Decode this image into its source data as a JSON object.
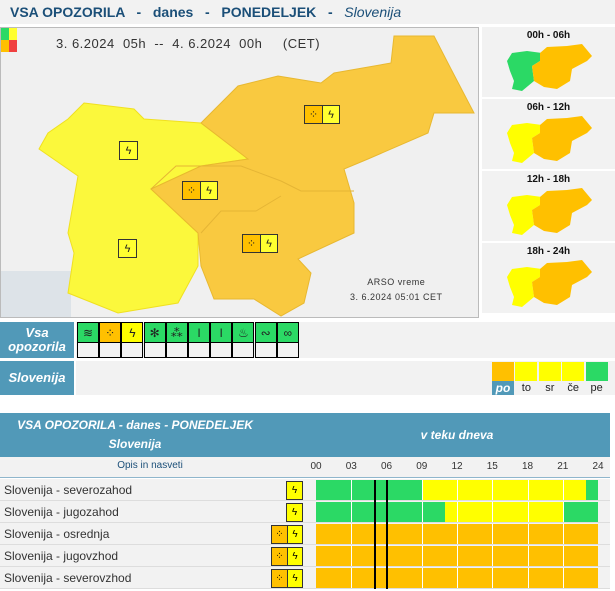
{
  "header": {
    "title": "VSA OPOZORILA",
    "sep": "-",
    "day_label": "danes",
    "weekday": "PONEDELJEK",
    "region": "Slovenija"
  },
  "map": {
    "period": "3. 6.2024  05h  --  4. 6.2024  00h     (CET)",
    "credit": "ARSO vreme",
    "issued": "3. 6.2024  05:01 CET",
    "legend_colors": [
      "#2bd965",
      "#ffff30",
      "#ffc000",
      "#f04040"
    ],
    "regions": [
      {
        "name": "severozahod",
        "level": "yellow",
        "icons": [
          "thunderstorm"
        ]
      },
      {
        "name": "jugozahod",
        "level": "yellow",
        "icons": [
          "thunderstorm"
        ]
      },
      {
        "name": "osrednja",
        "level": "orange",
        "icons": [
          "rain",
          "thunderstorm"
        ]
      },
      {
        "name": "jugovzhod",
        "level": "orange",
        "icons": [
          "rain",
          "thunderstorm"
        ]
      },
      {
        "name": "severovzhod",
        "level": "orange",
        "icons": [
          "rain",
          "thunderstorm"
        ]
      }
    ]
  },
  "period_maps": [
    {
      "label": "00h - 06h"
    },
    {
      "label": "06h - 12h"
    },
    {
      "label": "12h - 18h"
    },
    {
      "label": "18h - 24h"
    }
  ],
  "all_warnings": {
    "label": "Vsa opozorila",
    "types": [
      {
        "type": "wind",
        "level": "green"
      },
      {
        "type": "rain",
        "level": "orange"
      },
      {
        "type": "thunderstorm",
        "level": "yellow"
      },
      {
        "type": "snow",
        "level": "green"
      },
      {
        "type": "snow-ice",
        "level": "green"
      },
      {
        "type": "high-temperature",
        "level": "green"
      },
      {
        "type": "low-temperature",
        "level": "green"
      },
      {
        "type": "fire",
        "level": "green"
      },
      {
        "type": "coastal",
        "level": "green"
      },
      {
        "type": "landslide",
        "level": "green"
      }
    ]
  },
  "country": {
    "label": "Slovenija",
    "days": [
      {
        "label": "po",
        "level": "orange",
        "selected": true
      },
      {
        "label": "to",
        "level": "yellow"
      },
      {
        "label": "sr",
        "level": "yellow"
      },
      {
        "label": "če",
        "level": "yellow"
      },
      {
        "label": "pe",
        "level": "green"
      }
    ]
  },
  "table": {
    "title": "VSA OPOZORILA - danes - PONEDELJEK",
    "subtitle": "Slovenija",
    "timeline_title": "v teku dneva",
    "desc_link": "Opis in nasveti",
    "hours": [
      "00",
      "03",
      "06",
      "09",
      "12",
      "15",
      "18",
      "21",
      "24"
    ],
    "current_hour": 5,
    "rows": [
      {
        "name": "Slovenija - severozahod",
        "icons": [
          "thunderstorm"
        ],
        "segments": [
          {
            "from": 0,
            "to": 9,
            "level": "green"
          },
          {
            "from": 9,
            "to": 23,
            "level": "yellow"
          },
          {
            "from": 23,
            "to": 24,
            "level": "green"
          }
        ]
      },
      {
        "name": "Slovenija - jugozahod",
        "icons": [
          "thunderstorm"
        ],
        "segments": [
          {
            "from": 0,
            "to": 11,
            "level": "green"
          },
          {
            "from": 11,
            "to": 21,
            "level": "yellow"
          },
          {
            "from": 21,
            "to": 24,
            "level": "green"
          }
        ]
      },
      {
        "name": "Slovenija - osrednja",
        "icons": [
          "rain",
          "thunderstorm"
        ],
        "segments": [
          {
            "from": 0,
            "to": 24,
            "level": "orange"
          }
        ]
      },
      {
        "name": "Slovenija - jugovzhod",
        "icons": [
          "rain",
          "thunderstorm"
        ],
        "segments": [
          {
            "from": 0,
            "to": 24,
            "level": "orange"
          }
        ]
      },
      {
        "name": "Slovenija - severovzhod",
        "icons": [
          "rain",
          "thunderstorm"
        ],
        "segments": [
          {
            "from": 0,
            "to": 24,
            "level": "orange"
          }
        ]
      }
    ]
  },
  "colors": {
    "green": "#2bd965",
    "yellow": "#ffff00",
    "orange": "#ffc000",
    "red": "#f04040",
    "accent": "#5199b8",
    "title": "#1b4f78"
  }
}
